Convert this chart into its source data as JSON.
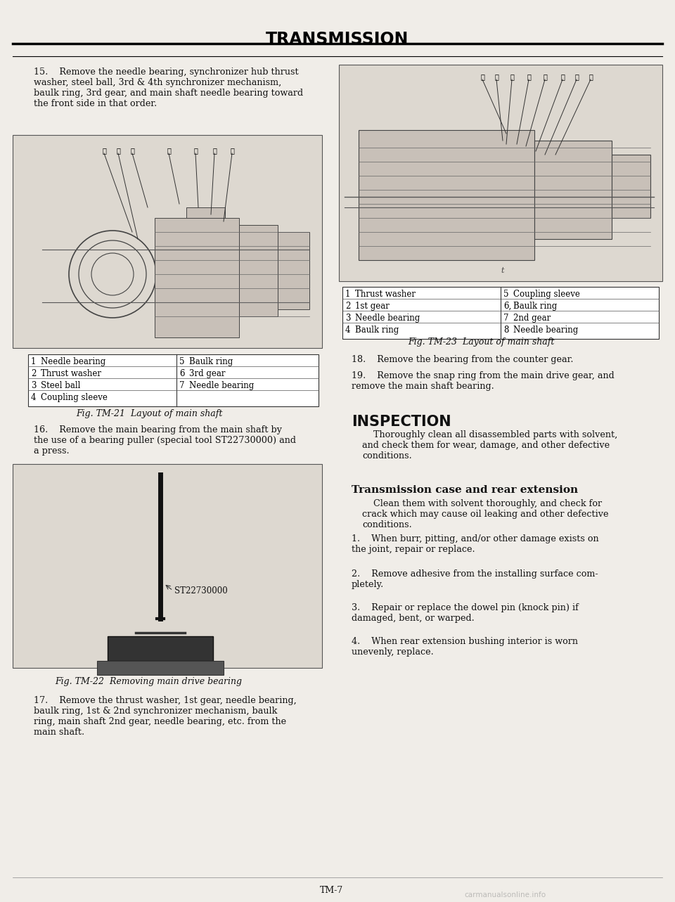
{
  "page_bg": "#f0ede8",
  "title": "TRANSMISSION",
  "title_fontsize": 17,
  "title_color": "#000000",
  "body_fontsize": 9.2,
  "body_color": "#111111",
  "italic_fontsize": 9,
  "section_header_fontsize": 15,
  "para15": "15.    Remove the needle bearing, synchronizer hub thrust\nwasher, steel ball, 3rd & 4th synchronizer mechanism,\nbaulk ring, 3rd gear, and main shaft needle bearing toward\nthe front side in that order.",
  "fig21_caption": "Fig. TM-21  Layout of main shaft",
  "fig21_table": [
    [
      "1",
      "Needle bearing",
      "5",
      "Baulk ring"
    ],
    [
      "2",
      "Thrust washer",
      "6",
      "3rd gear"
    ],
    [
      "3",
      "Steel ball",
      "7",
      "Needle bearing"
    ],
    [
      "4",
      "Coupling sleeve",
      "",
      ""
    ]
  ],
  "para16": "16.    Remove the main bearing from the main shaft by\nthe use of a bearing puller (special tool ST22730000) and\na press.",
  "fig22_label": "ST22730000",
  "fig22_caption": "Fig. TM-22  Removing main drive bearing",
  "para17": "17.    Remove the thrust washer, 1st gear, needle bearing,\nbaulk ring, 1st & 2nd synchronizer mechanism, baulk\nring, main shaft 2nd gear, needle bearing, etc. from the\nmain shaft.",
  "fig23_caption": "Fig. TM-23  Layout of main shaft",
  "fig23_table": [
    [
      "1",
      "Thrust washer",
      "5",
      "Coupling sleeve"
    ],
    [
      "2",
      "1st gear",
      "6,",
      "Baulk ring"
    ],
    [
      "3",
      "Needle bearing",
      "7",
      "2nd gear"
    ],
    [
      "4",
      "Baulk ring",
      "8",
      "Needle bearing"
    ]
  ],
  "para18": "18.    Remove the bearing from the counter gear.",
  "para19": "19.    Remove the snap ring from the main drive gear, and\nremove the main shaft bearing.",
  "inspection_title": "INSPECTION",
  "inspection_para": "    Thoroughly clean all disassembled parts with solvent,\nand check them for wear, damage, and other defective\nconditions.",
  "trans_case_title": "Transmission case and rear extension",
  "trans_case_para": "    Clean them with solvent thoroughly, and check for\ncrack which may cause oil leaking and other defective\nconditions.",
  "items": [
    "1.    When burr, pitting, and/or other damage exists on\nthe joint, repair or replace.",
    "2.    Remove adhesive from the installing surface com-\npletely.",
    "3.    Repair or replace the dowel pin (knock pin) if\ndamaged, bent, or warped.",
    "4.    When rear extension bushing interior is worn\nunevenly, replace."
  ],
  "page_number": "TM-7",
  "watermark": "carmanualsonline.info"
}
